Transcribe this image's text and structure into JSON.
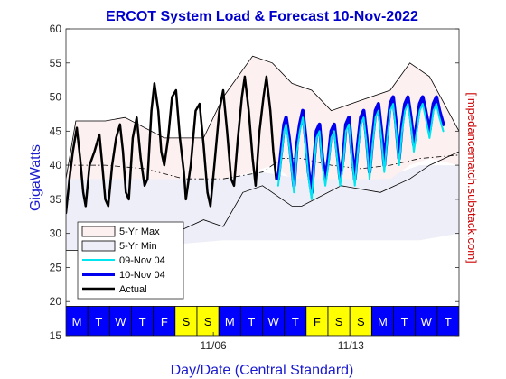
{
  "chart_data": {
    "type": "line",
    "title": "ERCOT System Load & Forecast 10-Nov-2022",
    "xlabel": "Day/Date (Central Standard)",
    "ylabel": "GigaWatts",
    "right_label": "[impedancematch.substack.com]",
    "ylim": [
      15,
      60
    ],
    "yticks": [
      15,
      20,
      25,
      30,
      35,
      40,
      45,
      50,
      55,
      60
    ],
    "xlim": [
      0,
      20
    ],
    "x_unit": "days from Mon 31-Oct-2022",
    "date_ticks": [
      {
        "x": 7.5,
        "label": "11/06"
      },
      {
        "x": 14.5,
        "label": "11/13"
      }
    ],
    "days": [
      {
        "label": "M",
        "weekend": false
      },
      {
        "label": "T",
        "weekend": false
      },
      {
        "label": "W",
        "weekend": false
      },
      {
        "label": "T",
        "weekend": false
      },
      {
        "label": "F",
        "weekend": false
      },
      {
        "label": "S",
        "weekend": true
      },
      {
        "label": "S",
        "weekend": true
      },
      {
        "label": "M",
        "weekend": false
      },
      {
        "label": "T",
        "weekend": false
      },
      {
        "label": "W",
        "weekend": false
      },
      {
        "label": "T",
        "weekend": false
      },
      {
        "label": "F",
        "weekend": true
      },
      {
        "label": "S",
        "weekend": true
      },
      {
        "label": "S",
        "weekend": true
      },
      {
        "label": "M",
        "weekend": false
      },
      {
        "label": "T",
        "weekend": false
      },
      {
        "label": "W",
        "weekend": false
      },
      {
        "label": "T",
        "weekend": false
      }
    ],
    "weekday_color": "#0000ff",
    "weekend_color": "#ffff00",
    "legend": {
      "placement": "lower-left",
      "entries": [
        "5-Yr Max",
        "5-Yr Min",
        "09-Nov 04",
        "10-Nov 04",
        "Actual"
      ]
    },
    "bands": {
      "max": {
        "name": "5-Yr Max",
        "color": "#fdf0f0",
        "upper": [
          [
            0,
            38
          ],
          [
            0.5,
            46.5
          ],
          [
            2,
            46.5
          ],
          [
            3,
            47
          ],
          [
            5,
            44
          ],
          [
            7,
            44
          ],
          [
            8,
            50
          ],
          [
            9.5,
            56
          ],
          [
            10.5,
            55
          ],
          [
            11.5,
            52
          ],
          [
            12.5,
            51
          ],
          [
            13.5,
            48
          ],
          [
            15,
            49.5
          ],
          [
            16.5,
            51
          ],
          [
            17.5,
            55
          ],
          [
            18.5,
            53
          ],
          [
            20,
            45
          ]
        ],
        "lower": [
          [
            0,
            38
          ],
          [
            0.5,
            38
          ],
          [
            2,
            38
          ],
          [
            3,
            38
          ],
          [
            5,
            38
          ],
          [
            7,
            38
          ],
          [
            8,
            38
          ],
          [
            9.5,
            39
          ],
          [
            10.5,
            40
          ],
          [
            11.5,
            38
          ],
          [
            12.5,
            38
          ],
          [
            13.5,
            38
          ],
          [
            15,
            38
          ],
          [
            16.5,
            38
          ],
          [
            17.5,
            40
          ],
          [
            18.5,
            41
          ],
          [
            20,
            40
          ]
        ]
      },
      "min": {
        "name": "5-Yr Min",
        "color": "#eeeef8",
        "upper": [
          [
            0,
            38
          ],
          [
            2,
            38
          ],
          [
            4,
            38
          ],
          [
            6,
            38
          ],
          [
            8,
            38
          ],
          [
            10,
            39
          ],
          [
            12,
            38
          ],
          [
            14,
            38
          ],
          [
            16,
            38
          ],
          [
            18,
            40
          ],
          [
            20,
            40
          ]
        ],
        "lower": [
          [
            0,
            27.5
          ],
          [
            2,
            28
          ],
          [
            4,
            28.5
          ],
          [
            6,
            28.5
          ],
          [
            8,
            29
          ],
          [
            10,
            29
          ],
          [
            12,
            29
          ],
          [
            14,
            29
          ],
          [
            16,
            29
          ],
          [
            18,
            29
          ],
          [
            20,
            30
          ]
        ]
      }
    },
    "series": [
      {
        "name": "Actual",
        "color": "#000000",
        "width": 2.5,
        "points": [
          [
            0,
            33
          ],
          [
            0.18,
            38
          ],
          [
            0.35,
            42
          ],
          [
            0.55,
            45.5
          ],
          [
            0.72,
            41
          ],
          [
            0.88,
            36
          ],
          [
            1.0,
            34
          ],
          [
            1.2,
            40
          ],
          [
            1.45,
            42
          ],
          [
            1.7,
            44.5
          ],
          [
            1.85,
            40
          ],
          [
            2.0,
            35
          ],
          [
            2.15,
            34
          ],
          [
            2.35,
            40
          ],
          [
            2.55,
            44
          ],
          [
            2.75,
            46
          ],
          [
            2.9,
            42
          ],
          [
            3.05,
            36
          ],
          [
            3.2,
            35
          ],
          [
            3.4,
            44
          ],
          [
            3.6,
            47
          ],
          [
            3.8,
            41
          ],
          [
            4.0,
            37
          ],
          [
            4.15,
            38
          ],
          [
            4.35,
            48
          ],
          [
            4.5,
            52
          ],
          [
            4.7,
            48
          ],
          [
            4.85,
            42
          ],
          [
            5.0,
            40
          ],
          [
            5.2,
            44
          ],
          [
            5.4,
            50
          ],
          [
            5.6,
            51
          ],
          [
            5.8,
            44
          ],
          [
            6.0,
            39
          ],
          [
            6.1,
            35
          ],
          [
            6.35,
            40
          ],
          [
            6.6,
            48
          ],
          [
            6.8,
            49
          ],
          [
            7.0,
            43
          ],
          [
            7.2,
            36
          ],
          [
            7.35,
            34
          ],
          [
            7.55,
            40
          ],
          [
            7.8,
            48
          ],
          [
            8.0,
            51
          ],
          [
            8.2,
            45
          ],
          [
            8.4,
            38
          ],
          [
            8.55,
            37
          ],
          [
            8.75,
            44
          ],
          [
            8.95,
            50
          ],
          [
            9.1,
            53
          ],
          [
            9.3,
            48
          ],
          [
            9.5,
            41
          ],
          [
            9.65,
            37
          ],
          [
            9.85,
            45
          ],
          [
            10.05,
            50
          ],
          [
            10.2,
            53
          ],
          [
            10.4,
            48
          ],
          [
            10.55,
            42
          ],
          [
            10.7,
            38
          ]
        ]
      },
      {
        "name": "10-Nov 04",
        "color": "#0000ee",
        "width": 4,
        "points": [
          [
            10.8,
            38
          ],
          [
            10.95,
            42
          ],
          [
            11.1,
            46
          ],
          [
            11.2,
            47
          ],
          [
            11.35,
            44
          ],
          [
            11.5,
            40
          ],
          [
            11.6,
            37
          ],
          [
            11.75,
            43
          ],
          [
            11.9,
            46
          ],
          [
            12.05,
            48
          ],
          [
            12.2,
            44
          ],
          [
            12.35,
            39
          ],
          [
            12.5,
            36
          ],
          [
            12.6,
            40
          ],
          [
            12.75,
            45
          ],
          [
            12.9,
            46
          ],
          [
            13.05,
            41
          ],
          [
            13.2,
            38
          ],
          [
            13.35,
            41
          ],
          [
            13.5,
            45
          ],
          [
            13.65,
            46
          ],
          [
            13.8,
            42
          ],
          [
            13.95,
            38
          ],
          [
            14.1,
            41
          ],
          [
            14.25,
            46
          ],
          [
            14.4,
            47
          ],
          [
            14.55,
            42
          ],
          [
            14.7,
            38
          ],
          [
            14.85,
            43
          ],
          [
            15.0,
            47
          ],
          [
            15.15,
            48
          ],
          [
            15.3,
            44
          ],
          [
            15.45,
            39
          ],
          [
            15.6,
            44
          ],
          [
            15.75,
            48
          ],
          [
            15.9,
            49
          ],
          [
            16.05,
            45
          ],
          [
            16.2,
            40
          ],
          [
            16.35,
            45
          ],
          [
            16.5,
            49
          ],
          [
            16.65,
            50
          ],
          [
            16.8,
            46
          ],
          [
            16.95,
            41
          ],
          [
            17.1,
            46
          ],
          [
            17.25,
            49
          ],
          [
            17.4,
            50
          ],
          [
            17.55,
            47
          ],
          [
            17.7,
            43
          ],
          [
            17.85,
            46
          ],
          [
            18.0,
            49
          ],
          [
            18.15,
            50
          ],
          [
            18.3,
            48
          ],
          [
            18.5,
            45
          ],
          [
            18.7,
            49
          ],
          [
            18.85,
            50
          ],
          [
            19.0,
            48
          ],
          [
            19.2,
            46
          ]
        ]
      },
      {
        "name": "09-Nov 04",
        "color": "#00e5ee",
        "width": 2,
        "points": [
          [
            10.8,
            37
          ],
          [
            10.95,
            41
          ],
          [
            11.1,
            45
          ],
          [
            11.2,
            46
          ],
          [
            11.35,
            43
          ],
          [
            11.5,
            39
          ],
          [
            11.6,
            36
          ],
          [
            11.75,
            42
          ],
          [
            11.9,
            45
          ],
          [
            12.05,
            47
          ],
          [
            12.2,
            43
          ],
          [
            12.35,
            38
          ],
          [
            12.5,
            35
          ],
          [
            12.6,
            39
          ],
          [
            12.75,
            44
          ],
          [
            12.9,
            45
          ],
          [
            13.05,
            40
          ],
          [
            13.2,
            37
          ],
          [
            13.35,
            40
          ],
          [
            13.5,
            44
          ],
          [
            13.65,
            45
          ],
          [
            13.8,
            41
          ],
          [
            13.95,
            37
          ],
          [
            14.1,
            40
          ],
          [
            14.25,
            45
          ],
          [
            14.4,
            46
          ],
          [
            14.55,
            41
          ],
          [
            14.7,
            37
          ],
          [
            14.85,
            42
          ],
          [
            15.0,
            46
          ],
          [
            15.15,
            47
          ],
          [
            15.3,
            43
          ],
          [
            15.45,
            38
          ],
          [
            15.6,
            43
          ],
          [
            15.75,
            47
          ],
          [
            15.9,
            48
          ],
          [
            16.05,
            44
          ],
          [
            16.2,
            39
          ],
          [
            16.35,
            44
          ],
          [
            16.5,
            48
          ],
          [
            16.65,
            49
          ],
          [
            16.8,
            45
          ],
          [
            16.95,
            40
          ],
          [
            17.1,
            45
          ],
          [
            17.25,
            48
          ],
          [
            17.4,
            49
          ],
          [
            17.55,
            46
          ],
          [
            17.7,
            42
          ],
          [
            17.85,
            45
          ],
          [
            18.0,
            48
          ],
          [
            18.15,
            49
          ],
          [
            18.3,
            47
          ],
          [
            18.5,
            44
          ],
          [
            18.7,
            48
          ],
          [
            18.85,
            49
          ],
          [
            19.0,
            47
          ],
          [
            19.2,
            45
          ]
        ]
      }
    ],
    "reference_lines": [
      {
        "name": "mean",
        "color": "#000000",
        "style": "dash-dot",
        "points": [
          [
            0,
            40
          ],
          [
            2,
            40
          ],
          [
            4,
            39.5
          ],
          [
            6,
            38
          ],
          [
            8,
            38
          ],
          [
            10,
            39
          ],
          [
            11,
            41
          ],
          [
            12,
            41
          ],
          [
            13.5,
            40
          ],
          [
            15,
            39.5
          ],
          [
            16.5,
            40
          ],
          [
            18,
            41
          ],
          [
            20,
            41.5
          ]
        ]
      },
      {
        "name": "range-upper",
        "color": "#000000",
        "style": "solid",
        "points": [
          [
            0,
            38
          ],
          [
            0.5,
            46.5
          ],
          [
            2,
            46.5
          ],
          [
            3,
            47
          ],
          [
            5,
            44
          ],
          [
            7,
            44
          ],
          [
            8,
            50
          ],
          [
            9.5,
            56
          ],
          [
            10.5,
            55
          ],
          [
            11.5,
            52
          ],
          [
            12.5,
            51
          ],
          [
            13.5,
            48
          ],
          [
            15,
            49.5
          ],
          [
            16.5,
            51
          ],
          [
            17.5,
            55
          ],
          [
            18.5,
            53
          ],
          [
            20,
            45
          ]
        ]
      },
      {
        "name": "range-lower",
        "color": "#000000",
        "style": "solid",
        "points": [
          [
            0,
            27.5
          ],
          [
            0.5,
            27.5
          ],
          [
            2,
            27.5
          ],
          [
            4,
            29
          ],
          [
            5.5,
            30
          ],
          [
            7,
            32
          ],
          [
            8,
            31
          ],
          [
            9,
            36
          ],
          [
            10,
            37
          ],
          [
            11,
            35
          ],
          [
            11.5,
            34
          ],
          [
            12,
            34
          ],
          [
            14,
            37
          ],
          [
            16,
            36
          ],
          [
            17.5,
            38
          ],
          [
            18.5,
            40
          ],
          [
            20,
            42
          ]
        ]
      }
    ]
  }
}
